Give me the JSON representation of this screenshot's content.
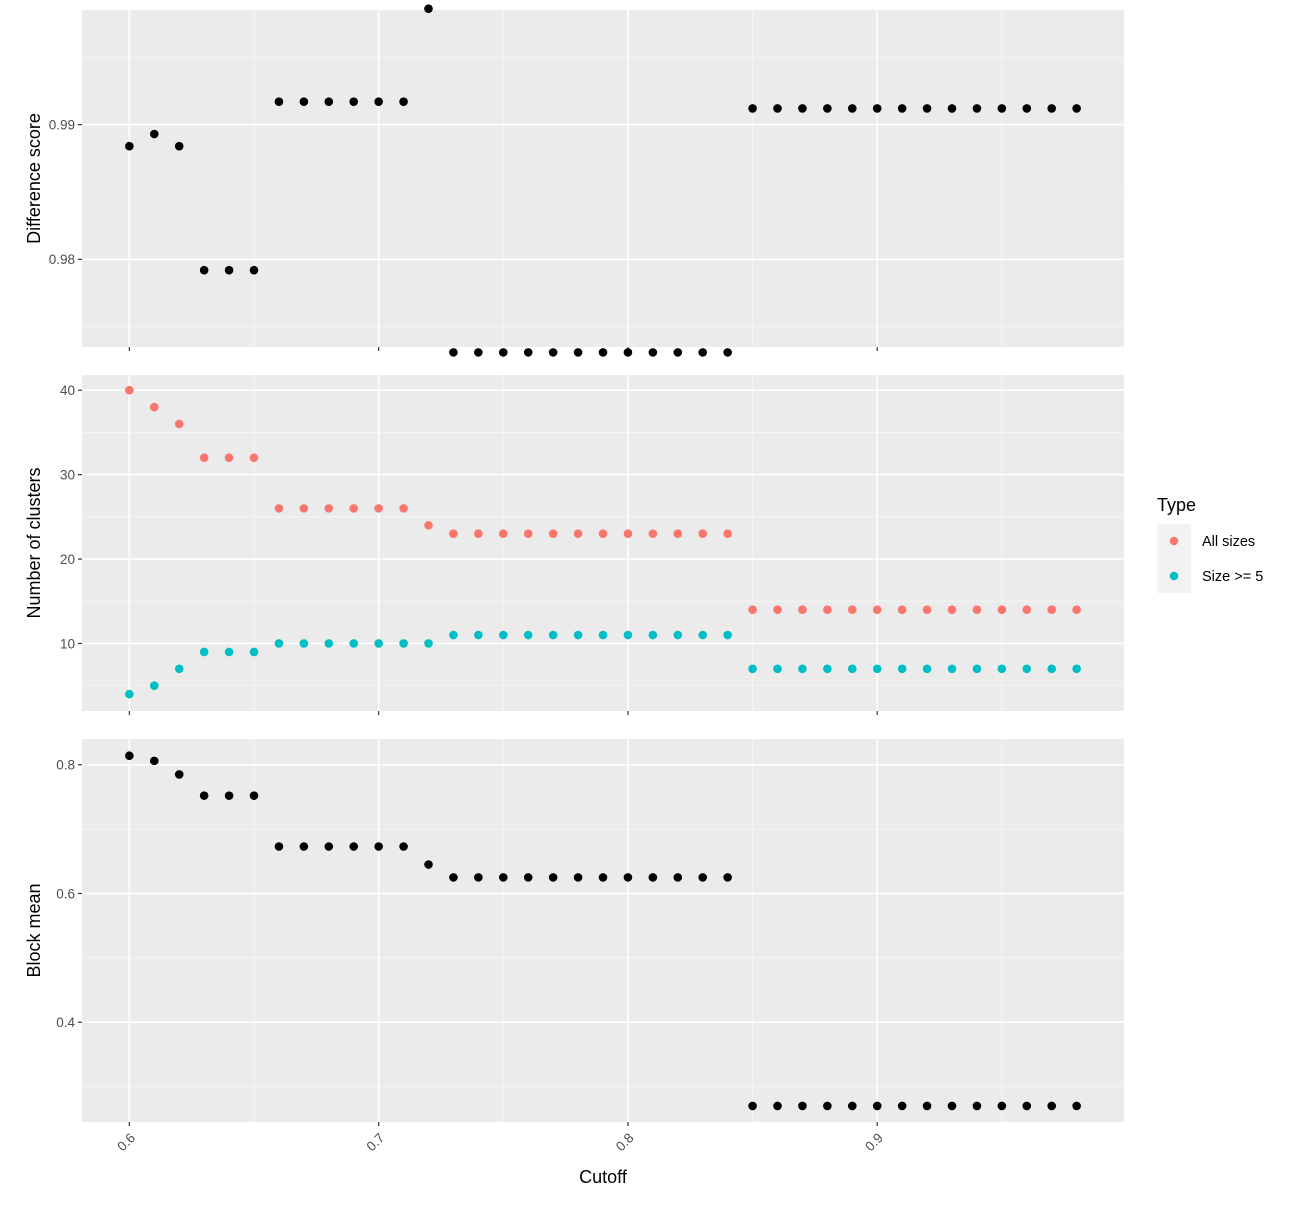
{
  "colors": {
    "panel_bg": "#EBEBEB",
    "grid_major": "#FFFFFF",
    "grid_minor": "#F5F5F5",
    "tick": "#333333",
    "point_default": "#000000",
    "all_sizes": "#F8766D",
    "size_ge_5": "#00BFC4",
    "legend_key_bg": "#F2F2F2"
  },
  "chart_data": [
    {
      "type": "scatter",
      "ylabel": "Difference score",
      "xlabel": "",
      "xlim": [
        0.581,
        0.999
      ],
      "ylim": [
        0.9735,
        0.9985
      ],
      "x_ticks": [
        0.6,
        0.7,
        0.8,
        0.9
      ],
      "x_tick_labels": [
        "",
        "",
        "",
        ""
      ],
      "y_ticks": [
        0.98,
        0.99
      ],
      "y_tick_labels": [
        "0.98",
        "0.99"
      ],
      "grid": true,
      "series": [
        {
          "x": [
            0.6,
            0.61,
            0.62,
            0.63,
            0.64,
            0.65,
            0.66,
            0.67,
            0.68,
            0.69,
            0.7,
            0.71,
            0.72,
            0.73,
            0.74,
            0.75,
            0.76,
            0.77,
            0.78,
            0.79,
            0.8,
            0.81,
            0.82,
            0.83,
            0.84,
            0.85,
            0.86,
            0.87,
            0.88,
            0.89,
            0.9,
            0.91,
            0.92,
            0.93,
            0.94,
            0.95,
            0.96,
            0.97,
            0.98
          ],
          "y": [
            0.9884,
            0.9893,
            0.9884,
            0.9792,
            0.9792,
            0.9792,
            0.9917,
            0.9917,
            0.9917,
            0.9917,
            0.9917,
            0.9917,
            0.9986,
            0.9731,
            0.9731,
            0.9731,
            0.9731,
            0.9731,
            0.9731,
            0.9731,
            0.9731,
            0.9731,
            0.9731,
            0.9731,
            0.9731,
            0.9912,
            0.9912,
            0.9912,
            0.9912,
            0.9912,
            0.9912,
            0.9912,
            0.9912,
            0.9912,
            0.9912,
            0.9912,
            0.9912,
            0.9912,
            0.9912
          ]
        }
      ]
    },
    {
      "type": "scatter",
      "ylabel": "Number of clusters",
      "xlabel": "",
      "xlim": [
        0.581,
        0.999
      ],
      "ylim": [
        2.0,
        41.8
      ],
      "x_ticks": [
        0.6,
        0.7,
        0.8,
        0.9
      ],
      "x_tick_labels": [
        "",
        "",
        "",
        ""
      ],
      "y_ticks": [
        10,
        20,
        30,
        40
      ],
      "y_tick_labels": [
        "10",
        "20",
        "30",
        "40"
      ],
      "grid": true,
      "legend": {
        "title": "Type",
        "placement": "right",
        "entries": [
          "All sizes",
          "Size >= 5"
        ]
      },
      "series": [
        {
          "name": "All sizes",
          "x": [
            0.6,
            0.61,
            0.62,
            0.63,
            0.64,
            0.65,
            0.66,
            0.67,
            0.68,
            0.69,
            0.7,
            0.71,
            0.72,
            0.73,
            0.74,
            0.75,
            0.76,
            0.77,
            0.78,
            0.79,
            0.8,
            0.81,
            0.82,
            0.83,
            0.84,
            0.85,
            0.86,
            0.87,
            0.88,
            0.89,
            0.9,
            0.91,
            0.92,
            0.93,
            0.94,
            0.95,
            0.96,
            0.97,
            0.98
          ],
          "y": [
            40,
            38,
            36,
            32,
            32,
            32,
            26,
            26,
            26,
            26,
            26,
            26,
            24,
            23,
            23,
            23,
            23,
            23,
            23,
            23,
            23,
            23,
            23,
            23,
            23,
            14,
            14,
            14,
            14,
            14,
            14,
            14,
            14,
            14,
            14,
            14,
            14,
            14,
            14
          ]
        },
        {
          "name": "Size >= 5",
          "x": [
            0.6,
            0.61,
            0.62,
            0.63,
            0.64,
            0.65,
            0.66,
            0.67,
            0.68,
            0.69,
            0.7,
            0.71,
            0.72,
            0.73,
            0.74,
            0.75,
            0.76,
            0.77,
            0.78,
            0.79,
            0.8,
            0.81,
            0.82,
            0.83,
            0.84,
            0.85,
            0.86,
            0.87,
            0.88,
            0.89,
            0.9,
            0.91,
            0.92,
            0.93,
            0.94,
            0.95,
            0.96,
            0.97,
            0.98
          ],
          "y": [
            4,
            5,
            7,
            9,
            9,
            9,
            10,
            10,
            10,
            10,
            10,
            10,
            10,
            11,
            11,
            11,
            11,
            11,
            11,
            11,
            11,
            11,
            11,
            11,
            11,
            7,
            7,
            7,
            7,
            7,
            7,
            7,
            7,
            7,
            7,
            7,
            7,
            7,
            7
          ]
        }
      ]
    },
    {
      "type": "scatter",
      "ylabel": "Block mean",
      "xlabel": "Cutoff",
      "xlim": [
        0.581,
        0.999
      ],
      "ylim": [
        0.245,
        0.84
      ],
      "x_ticks": [
        0.6,
        0.7,
        0.8,
        0.9
      ],
      "x_tick_labels": [
        "0.6",
        "0.7",
        "0.8",
        "0.9"
      ],
      "y_ticks": [
        0.4,
        0.6,
        0.8
      ],
      "y_tick_labels": [
        "0.4",
        "0.6",
        "0.8"
      ],
      "grid": true,
      "series": [
        {
          "x": [
            0.6,
            0.61,
            0.62,
            0.63,
            0.64,
            0.65,
            0.66,
            0.67,
            0.68,
            0.69,
            0.7,
            0.71,
            0.72,
            0.73,
            0.74,
            0.75,
            0.76,
            0.77,
            0.78,
            0.79,
            0.8,
            0.81,
            0.82,
            0.83,
            0.84,
            0.85,
            0.86,
            0.87,
            0.88,
            0.89,
            0.9,
            0.91,
            0.92,
            0.93,
            0.94,
            0.95,
            0.96,
            0.97,
            0.98
          ],
          "y": [
            0.814,
            0.806,
            0.785,
            0.752,
            0.752,
            0.752,
            0.673,
            0.673,
            0.673,
            0.673,
            0.673,
            0.673,
            0.645,
            0.625,
            0.625,
            0.625,
            0.625,
            0.625,
            0.625,
            0.625,
            0.625,
            0.625,
            0.625,
            0.625,
            0.625,
            0.27,
            0.27,
            0.27,
            0.27,
            0.27,
            0.27,
            0.27,
            0.27,
            0.27,
            0.27,
            0.27,
            0.27,
            0.27,
            0.27
          ]
        }
      ]
    }
  ]
}
